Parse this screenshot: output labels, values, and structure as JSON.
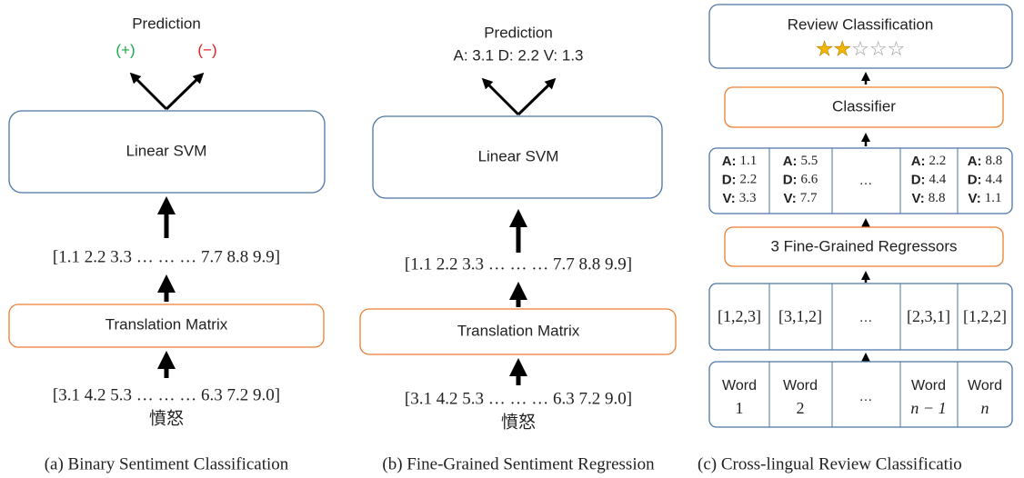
{
  "panels": [
    {
      "caption": "(a) Binary Sentiment Classification",
      "prediction": "Prediction",
      "labels": [
        "(+)",
        "(−)"
      ],
      "model": "Linear SVM",
      "vector": "[1.1  2.2  3.3  … … … 7.7 8.8 9.9]",
      "matrix": "Translation Matrix",
      "input": "[3.1  4.2  5.3  … … … 6.3 7.2 9.0]",
      "word": "憤怒"
    },
    {
      "caption": "(b) Fine-Grained Sentiment Regression",
      "prediction": "Prediction",
      "output": "A: 3.1 D: 2.2 V: 1.3",
      "model": "Linear SVM",
      "vector": "[1.1  2.2  3.3  … … … 7.7 8.8 9.9]",
      "matrix": "Translation Matrix",
      "input": "[3.1  4.2  5.3  … … … 6.3 7.2 9.0]",
      "word": "憤怒"
    },
    {
      "caption": "(c) Cross-lingual Review Classificatio",
      "title": "Review Classification",
      "stars_filled": "★★",
      "stars_empty": "☆☆☆",
      "classifier": "Classifier",
      "adv_labels": [
        "A:",
        "D:",
        "V:"
      ],
      "adv_columns": [
        [
          1.1,
          2.2,
          3.3
        ],
        [
          5.5,
          6.6,
          7.7
        ],
        [
          "…"
        ],
        [
          2.2,
          4.4,
          8.8
        ],
        [
          8.8,
          4.4,
          1.1
        ]
      ],
      "regressors": "3 Fine-Grained Regressors",
      "index_row": [
        "[1,2,3]",
        "[3,1,2]",
        "…",
        "[2,3,1]",
        "[1,2,2]"
      ],
      "words": [
        {
          "word": "Word",
          "index": "1"
        },
        {
          "word": "Word",
          "index": "2"
        },
        {
          "word": "…"
        },
        {
          "word": "Word",
          "index": "n − 1"
        },
        {
          "word": "Word",
          "index": "n"
        }
      ]
    }
  ]
}
